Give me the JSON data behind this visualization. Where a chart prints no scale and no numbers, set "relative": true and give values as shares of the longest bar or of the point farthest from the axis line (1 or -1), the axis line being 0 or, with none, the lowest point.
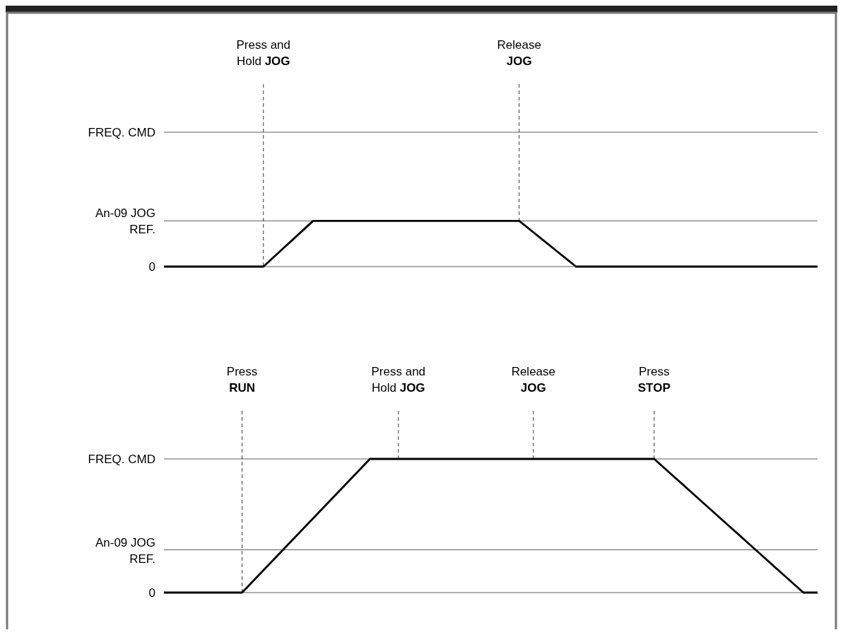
{
  "chart_data": [
    {
      "type": "line",
      "relative": true,
      "categories": [
        null,
        null,
        null,
        null,
        null,
        null,
        null,
        null,
        null,
        null,
        null,
        null,
        null,
        null,
        "Press and Hold JOG",
        null,
        null,
        null,
        null,
        null,
        null,
        null,
        null,
        null,
        null,
        null,
        null,
        null,
        null,
        null,
        null,
        null,
        null,
        null,
        null,
        null,
        null,
        null,
        null,
        null,
        null,
        null,
        null,
        null,
        null,
        null,
        null,
        null,
        null,
        null,
        "Release JOG",
        null,
        null,
        null,
        null,
        null,
        null,
        null,
        null,
        null,
        null,
        null,
        null,
        null,
        null,
        null,
        null,
        null,
        null,
        null,
        null,
        null,
        null,
        null,
        null,
        null,
        null,
        null,
        null,
        null,
        null,
        null,
        null,
        null,
        null,
        null,
        null,
        null,
        null,
        null,
        null,
        null,
        null
      ],
      "series": [
        {
          "color": "#000000",
          "values": [
            0,
            0,
            0,
            0,
            0,
            0,
            0,
            0,
            0,
            0,
            0,
            0,
            0,
            0,
            0,
            0.143,
            0.286,
            0.429,
            0.571,
            0.714,
            0.857,
            1,
            1,
            1,
            1,
            1,
            1,
            1,
            1,
            1,
            1,
            1,
            1,
            1,
            1,
            1,
            1,
            1,
            1,
            1,
            1,
            1,
            1,
            1,
            1,
            1,
            1,
            1,
            1,
            1,
            1,
            0.875,
            0.75,
            0.625,
            0.5,
            0.375,
            0.25,
            0.125,
            0,
            0,
            0,
            0,
            0,
            0,
            0,
            0,
            0,
            0,
            0,
            0,
            0,
            0,
            0,
            0,
            0,
            0,
            0,
            0,
            0,
            0,
            0,
            0,
            0,
            0,
            0,
            0,
            0,
            0,
            0,
            0,
            0,
            0,
            0
          ]
        }
      ],
      "grid": "x",
      "line_style": "solid",
      "ref_lines": [
        {
          "axis": "y",
          "value": 0,
          "label": "0"
        },
        {
          "axis": "y",
          "value": 1,
          "label": "An-09 JOG REF."
        },
        {
          "axis": "y",
          "value": 2.94,
          "label": "FREQ. CMD"
        }
      ]
    },
    {
      "type": "line",
      "relative": true,
      "categories": [
        null,
        null,
        null,
        null,
        null,
        null,
        null,
        null,
        null,
        null,
        null,
        "Press RUN",
        null,
        null,
        null,
        null,
        null,
        null,
        null,
        null,
        null,
        null,
        null,
        null,
        null,
        null,
        null,
        null,
        null,
        null,
        null,
        null,
        null,
        "Press and Hold JOG",
        null,
        null,
        null,
        null,
        null,
        null,
        null,
        null,
        null,
        null,
        null,
        null,
        null,
        null,
        null,
        null,
        null,
        null,
        "Release JOG",
        null,
        null,
        null,
        null,
        null,
        null,
        null,
        null,
        null,
        null,
        null,
        null,
        null,
        null,
        null,
        null,
        "Press STOP",
        null,
        null,
        null,
        null,
        null,
        null,
        null,
        null,
        null,
        null,
        null,
        null,
        null,
        null,
        null,
        null,
        null,
        null,
        null,
        null,
        null,
        null,
        null
      ],
      "series": [
        {
          "color": "#000000",
          "values": [
            0,
            0,
            0,
            0,
            0,
            0,
            0,
            0,
            0,
            0,
            0,
            0,
            0.056,
            0.111,
            0.167,
            0.222,
            0.278,
            0.333,
            0.389,
            0.444,
            0.5,
            0.556,
            0.611,
            0.667,
            0.722,
            0.778,
            0.833,
            0.889,
            0.944,
            1,
            1,
            1,
            1,
            1,
            1,
            1,
            1,
            1,
            1,
            1,
            1,
            1,
            1,
            1,
            1,
            1,
            1,
            1,
            1,
            1,
            1,
            1,
            1,
            1,
            1,
            1,
            1,
            1,
            1,
            1,
            1,
            1,
            1,
            1,
            1,
            1,
            1,
            1,
            1,
            1,
            0.952,
            0.905,
            0.857,
            0.81,
            0.762,
            0.714,
            0.667,
            0.619,
            0.571,
            0.524,
            0.476,
            0.429,
            0.381,
            0.333,
            0.286,
            0.238,
            0.19,
            0.143,
            0.095,
            0.048,
            0,
            0,
            0
          ]
        }
      ],
      "grid": "x",
      "line_style": "solid",
      "ref_lines": [
        {
          "axis": "y",
          "value": 0,
          "label": "0"
        },
        {
          "axis": "y",
          "value": 0.32,
          "label": "An-09 JOG REF."
        },
        {
          "axis": "y",
          "value": 1,
          "label": "FREQ. CMD"
        }
      ]
    }
  ]
}
